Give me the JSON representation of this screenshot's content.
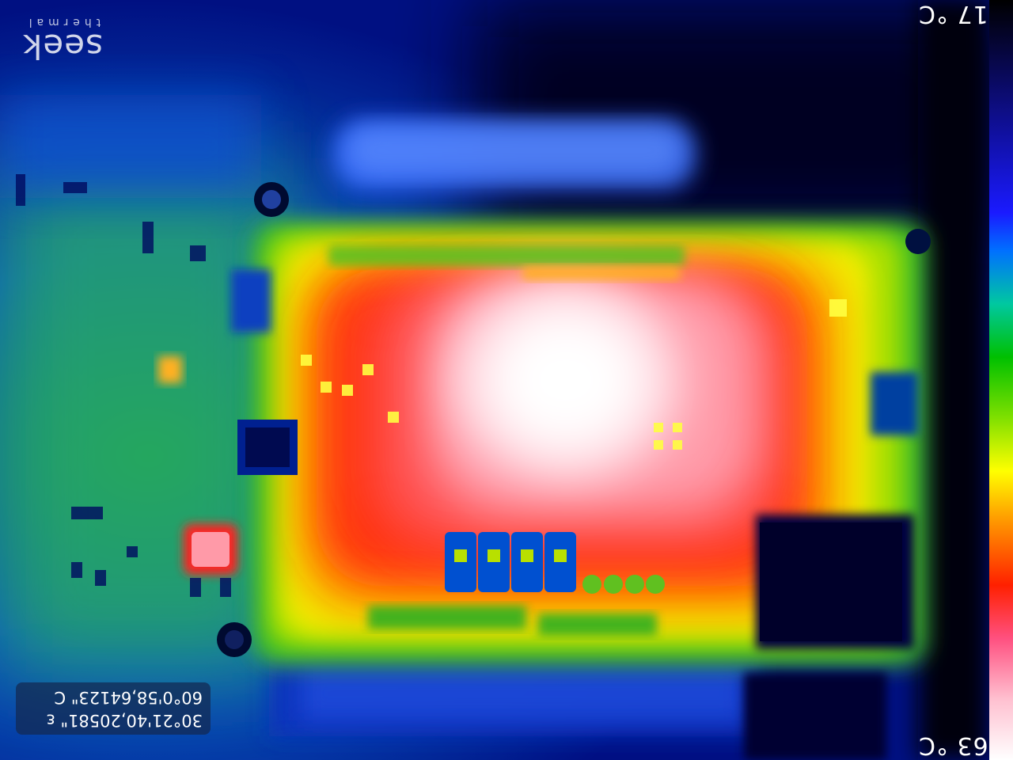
{
  "overlay": {
    "logo_text": "seek",
    "logo_subtext": "thermal",
    "temp_max": "63 °C",
    "temp_min": "17 °C",
    "gps_line1": "60°0'58,64123\" C",
    "gps_line2": "30°21'40,20581\" ε"
  },
  "palette": {
    "cold": "#000000",
    "cool": "#1a1aff",
    "mid": "#00c000",
    "warm": "#ffff00",
    "hot": "#ff2000",
    "hottest": "#ffffff"
  }
}
